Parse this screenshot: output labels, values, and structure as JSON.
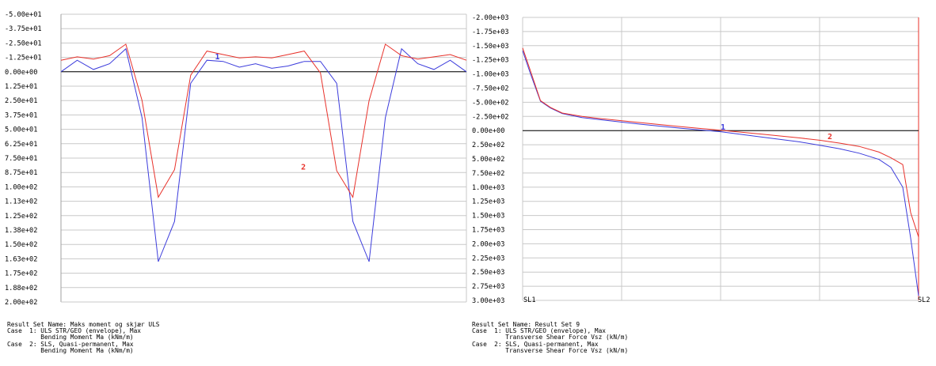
{
  "colors": {
    "series_1": "#3c3cdc",
    "series_2": "#e8312a",
    "axis": "#000000",
    "grid": "#c8c8c8",
    "frame_left": "#a0a0a0",
    "frame_right": "#e8312a",
    "background": "#ffffff"
  },
  "chart_data": [
    {
      "type": "line",
      "title": "",
      "y_axis_inverted": true,
      "ylim": [
        -50,
        200
      ],
      "y_ticks": [
        "-5.00e+01",
        "-3.75e+01",
        "-2.50e+01",
        "-1.25e+01",
        "0.00e+00",
        "1.25e+01",
        "2.50e+01",
        "3.75e+01",
        "5.00e+01",
        "6.25e+01",
        "7.50e+01",
        "8.75e+01",
        "1.00e+02",
        "1.13e+02",
        "1.25e+02",
        "1.38e+02",
        "1.50e+02",
        "1.63e+02",
        "1.75e+02",
        "1.88e+02",
        "2.00e+02"
      ],
      "grid": "horizontal",
      "x": [
        0,
        1,
        2,
        3,
        4,
        5,
        6,
        7,
        8,
        9,
        10,
        11,
        12,
        13,
        14,
        15,
        16,
        17,
        18,
        19,
        20,
        21,
        22,
        23,
        24,
        25
      ],
      "series": [
        {
          "label": "1",
          "values": [
            0,
            -10,
            -2,
            -7,
            -20,
            40,
            165,
            130,
            10,
            -10,
            -9,
            -4,
            -7,
            -3,
            -5,
            -9,
            -9,
            10,
            130,
            165,
            40,
            -20,
            -7,
            -2,
            -10,
            0
          ]
        },
        {
          "label": "2",
          "values": [
            -10,
            -13,
            -11,
            -14,
            -24,
            25,
            109,
            85,
            3,
            -18,
            -15,
            -12,
            -13,
            -12,
            -15,
            -18,
            1,
            86,
            109,
            25,
            -24,
            -14,
            -11,
            -13,
            -15,
            -10
          ]
        }
      ],
      "series_label_positions": {
        "1": [
          9.5,
          -11
        ],
        "2": [
          14.8,
          85
        ]
      },
      "info": [
        "Result Set Name: Maks moment og skjær ULS",
        "Case  1: ULS STR/GEO (envelope), Max",
        "         Bending Moment Ma (kNm/m)",
        "Case  2: SLS, Quasi-permanent, Max",
        "         Bending Moment Ma (kNm/m)"
      ]
    },
    {
      "type": "line",
      "title": "",
      "y_axis_inverted": true,
      "ylim": [
        -2000,
        3000
      ],
      "y_ticks": [
        "-2.00e+03",
        "-1.75e+03",
        "-1.50e+03",
        "-1.25e+03",
        "-1.00e+03",
        "-7.50e+02",
        "-5.00e+02",
        "-2.50e+02",
        "0.00e+00",
        "2.50e+02",
        "5.00e+02",
        "7.50e+02",
        "1.00e+03",
        "1.25e+03",
        "1.50e+03",
        "1.75e+03",
        "2.00e+03",
        "2.25e+03",
        "2.50e+03",
        "2.75e+03",
        "3.00e+03"
      ],
      "grid": "both",
      "x_labels": [
        "SL1",
        "SL2"
      ],
      "x": [
        0,
        0.02,
        0.045,
        0.07,
        0.1,
        0.15,
        0.2,
        0.3,
        0.4,
        0.5,
        0.6,
        0.7,
        0.75,
        0.8,
        0.85,
        0.9,
        0.93,
        0.96,
        0.98,
        1.0
      ],
      "series": [
        {
          "label": "1",
          "values": [
            -1410,
            -1000,
            -520,
            -400,
            -300,
            -230,
            -190,
            -110,
            -40,
            20,
            110,
            200,
            260,
            320,
            400,
            510,
            650,
            1000,
            1900,
            2920
          ]
        },
        {
          "label": "2",
          "values": [
            -1460,
            -1050,
            -530,
            -410,
            -310,
            -250,
            -210,
            -140,
            -70,
            -5,
            60,
            130,
            170,
            220,
            280,
            380,
            480,
            600,
            1450,
            1880
          ]
        }
      ],
      "series_label_positions": {
        "1": [
          0.5,
          -20
        ],
        "2": [
          0.77,
          150
        ]
      },
      "info": [
        "Result Set Name: Result Set 9",
        "Case  1: ULS STR/GEO (envelope), Max",
        "         Transverse Shear Force Vsz (kN/m)",
        "Case  2: SLS, Quasi-permanent, Max",
        "         Transverse Shear Force Vsz (kN/m)"
      ]
    }
  ]
}
